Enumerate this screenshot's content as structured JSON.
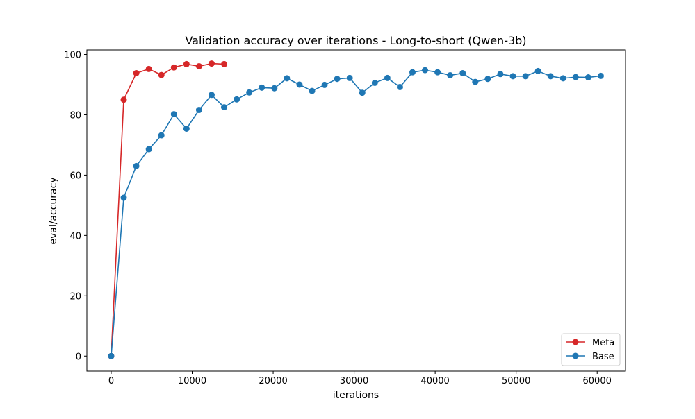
{
  "chart_data": {
    "type": "line",
    "title": "Validation accuracy over iterations - Long-to-short (Qwen-3b)",
    "xlabel": "iterations",
    "ylabel": "eval/accuracy",
    "xlim": [
      -3000,
      63500
    ],
    "ylim": [
      -5,
      101.5
    ],
    "xticks": [
      0,
      10000,
      20000,
      30000,
      40000,
      50000,
      60000
    ],
    "yticks": [
      0,
      20,
      40,
      60,
      80,
      100
    ],
    "grid": false,
    "legend_position": "lower right",
    "series": [
      {
        "name": "Meta",
        "color": "#d62728",
        "marker": "circle",
        "x": [
          0,
          1550,
          3100,
          4650,
          6200,
          7750,
          9300,
          10850,
          12400,
          13950
        ],
        "y": [
          0,
          85,
          93.8,
          95.2,
          93.2,
          95.7,
          96.8,
          96.1,
          97,
          96.8
        ]
      },
      {
        "name": "Base",
        "color": "#1f77b4",
        "marker": "circle",
        "x": [
          0,
          1550,
          3100,
          4650,
          6200,
          7750,
          9300,
          10850,
          12400,
          13950,
          15500,
          17050,
          18600,
          20150,
          21700,
          23250,
          24800,
          26350,
          27900,
          29450,
          31000,
          32550,
          34100,
          35650,
          37200,
          38750,
          40300,
          41850,
          43400,
          44950,
          46500,
          48050,
          49600,
          51150,
          52700,
          54250,
          55800,
          57350,
          58900,
          60450
        ],
        "y": [
          0,
          52.5,
          63,
          68.6,
          73.2,
          80.2,
          75.4,
          81.6,
          86.6,
          82.5,
          85.1,
          87.4,
          89,
          88.8,
          92.1,
          90,
          87.9,
          89.9,
          91.9,
          92.2,
          87.3,
          90.6,
          92.2,
          89.2,
          94.1,
          94.8,
          94.1,
          93.1,
          93.8,
          90.9,
          91.9,
          93.5,
          92.8,
          92.8,
          94.5,
          92.8,
          92.1,
          92.5,
          92.4,
          92.9
        ]
      }
    ]
  }
}
